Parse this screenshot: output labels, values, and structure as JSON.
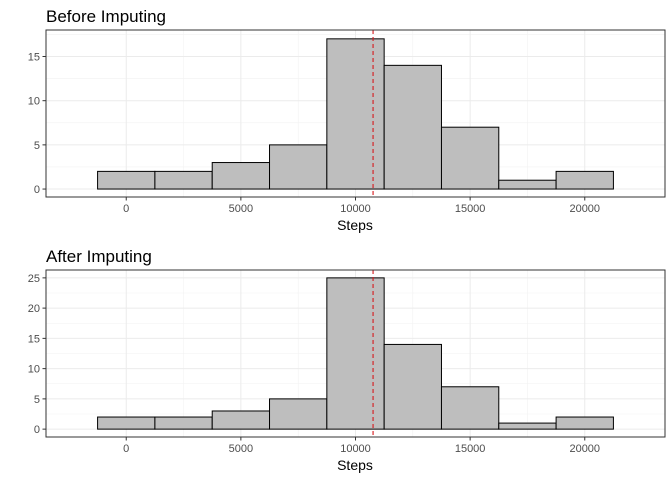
{
  "chart_data": [
    {
      "type": "bar",
      "title": "Before Imputing",
      "xlabel": "Steps",
      "ylabel": "",
      "bin_edges": [
        -1250,
        1250,
        3750,
        6250,
        8750,
        11250,
        13750,
        16250,
        18750,
        21250
      ],
      "values": [
        2,
        2,
        3,
        5,
        17,
        14,
        7,
        1,
        2
      ],
      "xlim": [
        -3500,
        23500
      ],
      "ylim": [
        -0.9,
        18
      ],
      "x_ticks": [
        0,
        5000,
        10000,
        15000,
        20000
      ],
      "y_ticks": [
        0,
        5,
        10,
        15
      ],
      "mean_line": 10766,
      "grid": true,
      "colors": {
        "bar_fill": "#bebebe",
        "bar_stroke": "#000000",
        "mean_line": "#d7191c"
      }
    },
    {
      "type": "bar",
      "title": "After Imputing",
      "xlabel": "Steps",
      "ylabel": "",
      "bin_edges": [
        -1250,
        1250,
        3750,
        6250,
        8750,
        11250,
        13750,
        16250,
        18750,
        21250
      ],
      "values": [
        2,
        2,
        3,
        5,
        25,
        14,
        7,
        1,
        2
      ],
      "xlim": [
        -3500,
        23500
      ],
      "ylim": [
        -1.3,
        26.3
      ],
      "x_ticks": [
        0,
        5000,
        10000,
        15000,
        20000
      ],
      "y_ticks": [
        0,
        5,
        10,
        15,
        20,
        25
      ],
      "mean_line": 10766,
      "grid": true,
      "colors": {
        "bar_fill": "#bebebe",
        "bar_stroke": "#000000",
        "mean_line": "#d7191c"
      }
    }
  ]
}
